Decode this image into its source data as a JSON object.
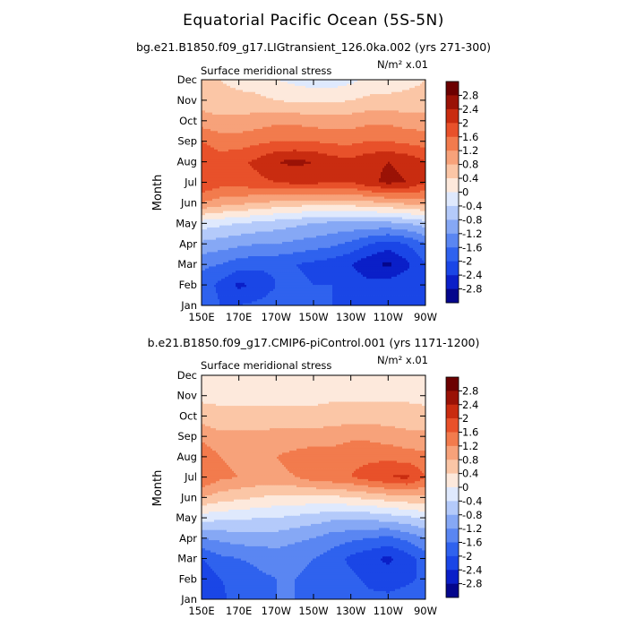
{
  "figure": {
    "title": "Equatorial Pacific Ocean (5S-5N)"
  },
  "colors": {
    "levels": [
      -2.8,
      -2.4,
      -2.0,
      -1.6,
      -1.2,
      -0.8,
      -0.4,
      0,
      0.4,
      0.8,
      1.2,
      1.6,
      2.0,
      2.4,
      2.8
    ],
    "palette": [
      "#04068c",
      "#0a1fc8",
      "#1a46e6",
      "#2f62ee",
      "#5a86f2",
      "#86a8f5",
      "#b4cafa",
      "#dfe9fd",
      "#fde9dc",
      "#fbc6a6",
      "#f7a27a",
      "#f27b4d",
      "#e8512a",
      "#c92c10",
      "#9a1206",
      "#6c0000"
    ]
  },
  "chart_data": [
    {
      "type": "heatmap",
      "subtitle": "bg.e21.B1850.f09_g17.LIGtransient_126.0ka.002 (yrs 271-300)",
      "panel_label": "Surface meridional stress",
      "units_label": "N/m² x.01",
      "ylabel": "Month",
      "x_ticks": [
        "150E",
        "170E",
        "170W",
        "150W",
        "130W",
        "110W",
        "90W"
      ],
      "x_lon": [
        150,
        170,
        190,
        210,
        230,
        250,
        270
      ],
      "y_ticks": [
        "Jan",
        "Feb",
        "Mar",
        "Apr",
        "May",
        "Jun",
        "Jul",
        "Aug",
        "Sep",
        "Oct",
        "Nov",
        "Dec"
      ],
      "colorbar_ticks": [
        "2.8",
        "2.4",
        "2",
        "1.6",
        "1.2",
        "0.8",
        "0.4",
        "0",
        "-0.4",
        "-0.8",
        "-1.2",
        "-1.6",
        "-2",
        "-2.4",
        "-2.8"
      ],
      "xlim": [
        150,
        270
      ],
      "z_lon": [
        150,
        160,
        170,
        180,
        190,
        200,
        210,
        220,
        230,
        240,
        250,
        260,
        270
      ],
      "z": [
        [
          -1.6,
          -2.0,
          -2.0,
          -1.9,
          -1.8,
          -1.8,
          -1.9,
          -2.0,
          -2.0,
          -2.1,
          -2.0,
          -2.0,
          -2.0
        ],
        [
          -1.8,
          -2.1,
          -2.5,
          -2.3,
          -2.0,
          -1.9,
          -2.0,
          -2.0,
          -2.1,
          -2.3,
          -2.2,
          -2.1,
          -2.0
        ],
        [
          -1.5,
          -1.6,
          -1.8,
          -1.9,
          -1.9,
          -2.0,
          -2.1,
          -2.2,
          -2.4,
          -2.7,
          -2.9,
          -2.5,
          -2.0
        ],
        [
          -0.9,
          -1.0,
          -1.1,
          -1.2,
          -1.2,
          -1.3,
          -1.4,
          -1.5,
          -1.7,
          -2.0,
          -2.2,
          -2.0,
          -1.6
        ],
        [
          -0.2,
          -0.3,
          -0.4,
          -0.5,
          -0.6,
          -0.7,
          -0.8,
          -0.9,
          -0.9,
          -0.9,
          -0.9,
          -0.8,
          -0.6
        ],
        [
          1.2,
          1.0,
          0.9,
          0.8,
          0.7,
          0.6,
          0.6,
          0.6,
          0.6,
          0.7,
          0.8,
          0.9,
          1.0
        ],
        [
          2.0,
          1.8,
          1.8,
          1.9,
          2.0,
          2.1,
          2.1,
          2.0,
          2.0,
          2.3,
          2.5,
          2.4,
          2.0
        ],
        [
          2.0,
          1.8,
          1.9,
          2.1,
          2.4,
          2.5,
          2.4,
          2.2,
          2.1,
          2.3,
          2.4,
          2.3,
          2.0
        ],
        [
          1.6,
          1.4,
          1.4,
          1.5,
          1.6,
          1.6,
          1.6,
          1.5,
          1.5,
          1.6,
          1.6,
          1.5,
          1.4
        ],
        [
          1.0,
          0.9,
          0.9,
          1.0,
          1.1,
          1.1,
          1.0,
          1.0,
          1.0,
          1.1,
          1.1,
          1.0,
          1.0
        ],
        [
          0.6,
          0.5,
          0.5,
          0.5,
          0.4,
          0.3,
          0.3,
          0.3,
          0.4,
          0.5,
          0.5,
          0.5,
          0.5
        ],
        [
          0.5,
          0.4,
          0.3,
          0.2,
          0.0,
          -0.1,
          -0.2,
          -0.2,
          -0.1,
          0.1,
          0.2,
          0.3,
          0.4
        ]
      ]
    },
    {
      "type": "heatmap",
      "subtitle": "b.e21.B1850.f09_g17.CMIP6-piControl.001 (yrs 1171-1200)",
      "panel_label": "Surface meridional stress",
      "units_label": "N/m² x.01",
      "ylabel": "Month",
      "x_ticks": [
        "150E",
        "170E",
        "170W",
        "150W",
        "130W",
        "110W",
        "90W"
      ],
      "x_lon": [
        150,
        170,
        190,
        210,
        230,
        250,
        270
      ],
      "y_ticks": [
        "Jan",
        "Feb",
        "Mar",
        "Apr",
        "May",
        "Jun",
        "Jul",
        "Aug",
        "Sep",
        "Oct",
        "Nov",
        "Dec"
      ],
      "colorbar_ticks": [
        "2.8",
        "2.4",
        "2",
        "1.6",
        "1.2",
        "0.8",
        "0.4",
        "0",
        "-0.4",
        "-0.8",
        "-1.2",
        "-1.6",
        "-2",
        "-2.4",
        "-2.8"
      ],
      "xlim": [
        150,
        270
      ],
      "z_lon": [
        150,
        160,
        170,
        180,
        190,
        200,
        210,
        220,
        230,
        240,
        250,
        260,
        270
      ],
      "z": [
        [
          -2.2,
          -2.1,
          -1.8,
          -1.6,
          -1.6,
          -1.6,
          -1.7,
          -1.8,
          -1.8,
          -1.9,
          -1.9,
          -1.8,
          -1.7
        ],
        [
          -2.3,
          -2.0,
          -1.9,
          -1.7,
          -1.6,
          -1.6,
          -1.7,
          -1.8,
          -1.9,
          -2.1,
          -2.2,
          -2.1,
          -1.9
        ],
        [
          -2.0,
          -1.7,
          -1.6,
          -1.5,
          -1.4,
          -1.5,
          -1.6,
          -1.8,
          -2.1,
          -2.3,
          -2.5,
          -2.2,
          -1.8
        ],
        [
          -1.2,
          -1.1,
          -1.0,
          -1.0,
          -1.0,
          -1.1,
          -1.2,
          -1.4,
          -1.5,
          -1.6,
          -1.7,
          -1.5,
          -1.2
        ],
        [
          -0.2,
          -0.3,
          -0.3,
          -0.4,
          -0.4,
          -0.5,
          -0.6,
          -0.7,
          -0.7,
          -0.7,
          -0.6,
          -0.5,
          -0.3
        ],
        [
          0.8,
          0.6,
          0.5,
          0.4,
          0.3,
          0.3,
          0.3,
          0.3,
          0.4,
          0.5,
          0.6,
          0.7,
          0.7
        ],
        [
          1.6,
          1.3,
          1.2,
          1.1,
          1.1,
          1.2,
          1.4,
          1.5,
          1.6,
          1.8,
          2.0,
          2.1,
          1.6
        ],
        [
          1.5,
          1.2,
          1.1,
          1.1,
          1.2,
          1.3,
          1.4,
          1.4,
          1.5,
          1.5,
          1.5,
          1.4,
          1.3
        ],
        [
          1.1,
          0.9,
          0.9,
          0.9,
          1.0,
          1.0,
          1.0,
          1.0,
          1.1,
          1.1,
          1.0,
          0.9,
          0.9
        ],
        [
          0.6,
          0.5,
          0.5,
          0.5,
          0.5,
          0.5,
          0.5,
          0.6,
          0.6,
          0.6,
          0.6,
          0.6,
          0.5
        ],
        [
          0.3,
          0.3,
          0.3,
          0.3,
          0.3,
          0.3,
          0.3,
          0.3,
          0.3,
          0.3,
          0.3,
          0.3,
          0.3
        ],
        [
          0.3,
          0.3,
          0.2,
          0.2,
          0.2,
          0.2,
          0.2,
          0.2,
          0.2,
          0.2,
          0.2,
          0.1,
          0.1
        ]
      ]
    }
  ]
}
